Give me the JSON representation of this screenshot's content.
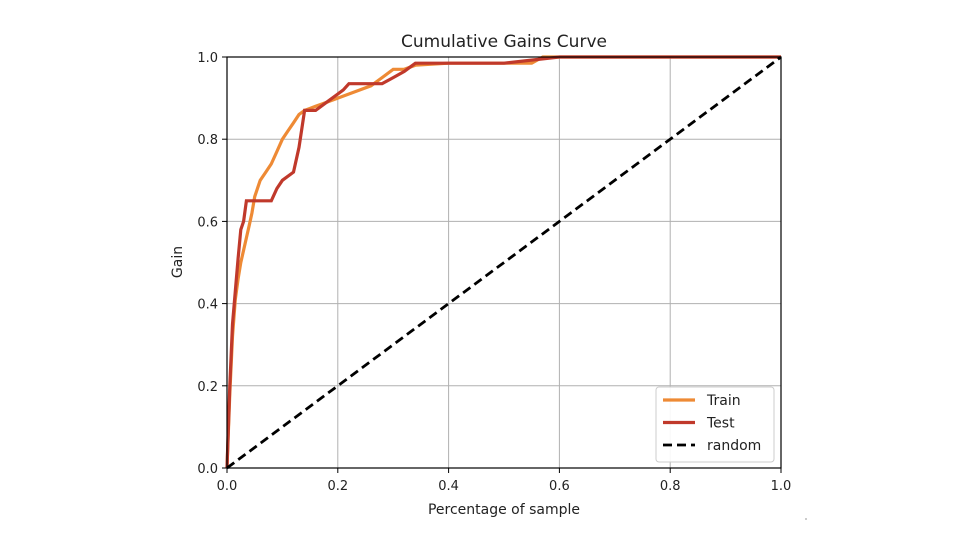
{
  "chart_data": {
    "type": "line",
    "title": "Cumulative Gains Curve",
    "xlabel": "Percentage of sample",
    "ylabel": "Gain",
    "xlim": [
      0.0,
      1.0
    ],
    "ylim": [
      0.0,
      1.0
    ],
    "xticks": [
      "0.0",
      "0.2",
      "0.4",
      "0.6",
      "0.8",
      "1.0"
    ],
    "yticks": [
      "0.0",
      "0.2",
      "0.4",
      "0.6",
      "0.8",
      "1.0"
    ],
    "grid": true,
    "legend_position": "lower-right",
    "series": [
      {
        "name": "Train",
        "color": "#ee8a35",
        "style": "solid",
        "x": [
          0.0,
          0.005,
          0.01,
          0.015,
          0.02,
          0.025,
          0.03,
          0.035,
          0.04,
          0.045,
          0.05,
          0.06,
          0.07,
          0.08,
          0.09,
          0.1,
          0.11,
          0.12,
          0.13,
          0.14,
          0.15,
          0.16,
          0.17,
          0.18,
          0.2,
          0.22,
          0.24,
          0.26,
          0.28,
          0.3,
          0.32,
          0.34,
          0.4,
          0.5,
          0.55,
          0.57,
          0.6,
          0.7,
          0.8,
          0.9,
          1.0
        ],
        "y": [
          0.0,
          0.18,
          0.32,
          0.41,
          0.46,
          0.5,
          0.53,
          0.56,
          0.59,
          0.62,
          0.66,
          0.7,
          0.72,
          0.74,
          0.77,
          0.8,
          0.82,
          0.84,
          0.86,
          0.87,
          0.875,
          0.88,
          0.885,
          0.89,
          0.9,
          0.91,
          0.92,
          0.93,
          0.95,
          0.97,
          0.97,
          0.98,
          0.985,
          0.985,
          0.985,
          1.0,
          1.0,
          1.0,
          1.0,
          1.0,
          1.0
        ]
      },
      {
        "name": "Test",
        "color": "#c0392b",
        "style": "solid",
        "x": [
          0.0,
          0.005,
          0.01,
          0.015,
          0.02,
          0.025,
          0.03,
          0.035,
          0.05,
          0.06,
          0.08,
          0.09,
          0.1,
          0.12,
          0.13,
          0.14,
          0.16,
          0.18,
          0.2,
          0.21,
          0.22,
          0.25,
          0.28,
          0.3,
          0.32,
          0.33,
          0.34,
          0.4,
          0.5,
          0.6,
          0.7,
          0.8,
          0.9,
          1.0
        ],
        "y": [
          0.0,
          0.2,
          0.35,
          0.43,
          0.51,
          0.58,
          0.6,
          0.65,
          0.65,
          0.65,
          0.65,
          0.68,
          0.7,
          0.72,
          0.78,
          0.87,
          0.87,
          0.89,
          0.91,
          0.92,
          0.935,
          0.935,
          0.935,
          0.95,
          0.965,
          0.975,
          0.985,
          0.985,
          0.985,
          1.0,
          1.0,
          1.0,
          1.0,
          1.0
        ]
      },
      {
        "name": "random",
        "color": "#000000",
        "style": "dashed",
        "x": [
          0.0,
          1.0
        ],
        "y": [
          0.0,
          1.0
        ]
      }
    ]
  }
}
